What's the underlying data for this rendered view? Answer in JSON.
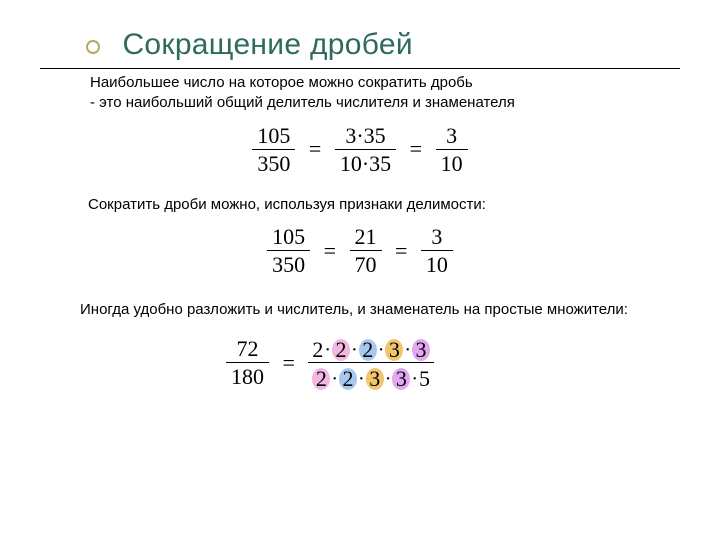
{
  "title": "Сокращение дробей",
  "intro_line1": "Наибольшее число на которое можно сократить дробь",
  "intro_line2": " - это наибольший общий делитель числителя и знаменателя",
  "eq1": {
    "f1": {
      "num": "105",
      "den": "350"
    },
    "f2": {
      "num": "3·35",
      "den": "10·35"
    },
    "f3": {
      "num": "3",
      "den": "10"
    }
  },
  "para2": "Сократить дроби можно, используя признаки делимости:",
  "eq2": {
    "f1": {
      "num": "105",
      "den": "350"
    },
    "f2": {
      "num": "21",
      "den": "70"
    },
    "f3": {
      "num": "3",
      "den": "10"
    }
  },
  "para3": "Иногда удобно разложить и числитель, и знаменатель на простые множители:",
  "eq3": {
    "frac": {
      "num": "72",
      "den": "180"
    },
    "top": [
      {
        "t": "2",
        "c": "plain"
      },
      {
        "t": "2",
        "c": "c-pink"
      },
      {
        "t": "2",
        "c": "c-blue"
      },
      {
        "t": "3",
        "c": "c-yellow"
      },
      {
        "t": "3",
        "c": "c-violet"
      }
    ],
    "bottom": [
      {
        "t": "2",
        "c": "c-pink"
      },
      {
        "t": "2",
        "c": "c-blue"
      },
      {
        "t": "3",
        "c": "c-yellow"
      },
      {
        "t": "3",
        "c": "c-violet"
      },
      {
        "t": "5",
        "c": "plain"
      }
    ]
  },
  "colors": {
    "title": "#2e6b5e",
    "bullet_border": "#b8a968",
    "pink": "#f4b5e1",
    "blue": "#a7c8ef",
    "yellow": "#f0c56e",
    "violet": "#e2a7ef"
  }
}
